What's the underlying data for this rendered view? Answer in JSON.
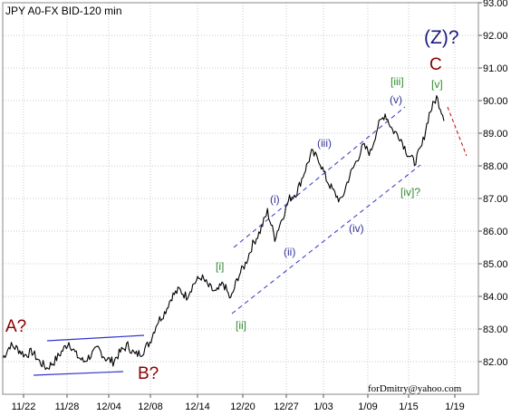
{
  "chart_data": {
    "type": "line",
    "title": "JPY A0-FX BID-120 min",
    "credit": "forDmitry@yahoo.com",
    "ylim": [
      81.0,
      93.0
    ],
    "y_ticks": [
      "82.00",
      "83.00",
      "84.00",
      "85.00",
      "86.00",
      "87.00",
      "88.00",
      "89.00",
      "90.00",
      "91.00",
      "92.00",
      "93.00"
    ],
    "x_ticks": [
      "11/22",
      "11/28",
      "12/04",
      "12/08",
      "12/14",
      "12/20",
      "12/27",
      "1/03",
      "1/09",
      "1/15",
      "1/19"
    ],
    "grid": true,
    "colors": {
      "price": "#000000",
      "channel": "#3333cc",
      "major_label": "#8b0000",
      "z_label": "#1a1a80",
      "minor_green": "#2e8b2e",
      "minor_navy": "#333399",
      "projection": "#cc0000"
    },
    "series": [
      {
        "x": [
          "11/19",
          "11/20",
          "11/21",
          "11/22",
          "11/23",
          "11/24",
          "11/25",
          "11/26",
          "11/27",
          "11/28",
          "11/29",
          "11/30",
          "12/01",
          "12/02",
          "12/03",
          "12/04",
          "12/05",
          "12/06",
          "12/07",
          "12/08",
          "12/09",
          "12/10",
          "12/11",
          "12/12",
          "12/13",
          "12/14",
          "12/15",
          "12/16",
          "12/17",
          "12/18",
          "12/19",
          "12/20",
          "12/21",
          "12/22",
          "12/23",
          "12/24",
          "12/25",
          "12/26",
          "12/27",
          "12/28",
          "12/29",
          "12/30",
          "12/31",
          "1/01",
          "1/02",
          "1/03",
          "1/04",
          "1/05",
          "1/06",
          "1/07",
          "1/08",
          "1/09",
          "1/10",
          "1/11",
          "1/12",
          "1/13",
          "1/14",
          "1/15",
          "1/16",
          "1/17",
          "1/18"
        ],
        "values": [
          82.1,
          82.5,
          82.4,
          82.2,
          82.3,
          82.0,
          81.8,
          82.0,
          82.3,
          82.6,
          82.2,
          82.0,
          82.2,
          82.4,
          82.1,
          82.0,
          82.3,
          82.5,
          82.2,
          82.3,
          82.6,
          83.2,
          83.5,
          84.0,
          84.2,
          84.0,
          84.4,
          84.6,
          84.3,
          84.1,
          84.4,
          83.9,
          84.6,
          85.0,
          85.6,
          86.0,
          86.6,
          85.8,
          86.4,
          87.0,
          87.2,
          87.8,
          88.4,
          88.2,
          87.6,
          87.2,
          86.9,
          87.6,
          88.1,
          88.6,
          88.4,
          89.2,
          89.6,
          89.1,
          88.9,
          88.4,
          88.1,
          88.6,
          89.6,
          90.1,
          89.5
        ]
      }
    ],
    "annotations": {
      "a": "A?",
      "b": "B?",
      "c": "C",
      "z": "(Z)?",
      "i_sq": "[i]",
      "ii_sq": "[ii]",
      "iii_sq": "[iii]",
      "iv_sq": "[iv]?",
      "v_sq": "[v]",
      "i_par": "(i)",
      "ii_par": "(ii)",
      "iii_par": "(iii)",
      "iv_par": "(iv)",
      "v_par": "(v)"
    }
  }
}
